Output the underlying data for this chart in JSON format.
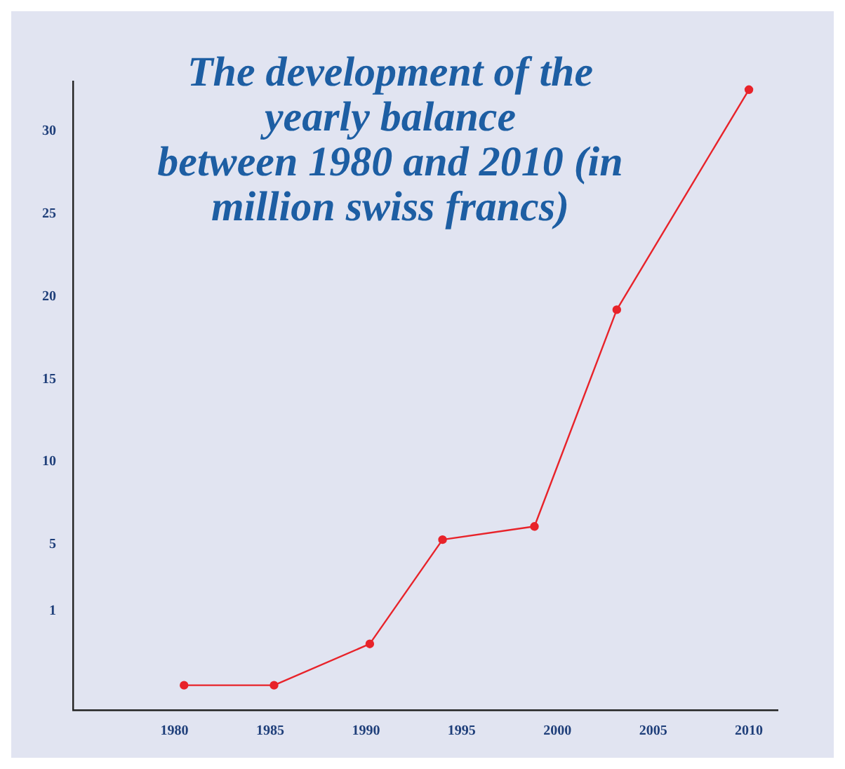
{
  "chart_data": {
    "type": "line",
    "title": "The development of the\nyearly balance\nbetween 1980 and 2010 (in\nmillion swiss francs)",
    "x": [
      1980.5,
      1985.2,
      1990.2,
      1994,
      1998.8,
      2003.1,
      2010
    ],
    "series": [
      {
        "color": "#e8232a",
        "values": [
          -3.5,
          -3.5,
          -1.0,
          5.3,
          6.1,
          19.2,
          32.5
        ]
      }
    ],
    "xlim": [
      1974.7,
      2011.5
    ],
    "xticks": [
      1980,
      1985,
      1990,
      1995,
      2000,
      2005,
      2010
    ],
    "ylim": [
      -5,
      33
    ],
    "yticks": [
      1,
      5,
      10,
      15,
      20,
      25,
      30
    ],
    "grid": false,
    "legend": false,
    "marker": "circle",
    "line_style": "solid"
  }
}
